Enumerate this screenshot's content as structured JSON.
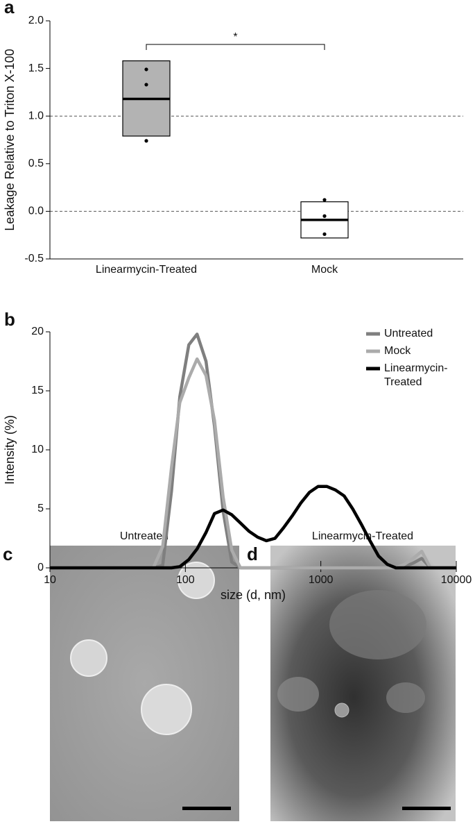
{
  "chart_data": [
    {
      "type": "box",
      "panel": "a",
      "ylabel": "Leakage Relative to Triton X-100",
      "categories": [
        "Linearmycin-Treated",
        "Mock"
      ],
      "boxes": [
        {
          "low": 0.79,
          "median": 1.18,
          "high": 1.58,
          "points": [
            1.49,
            1.33,
            0.74
          ],
          "color": "#b3b3b3"
        },
        {
          "low": -0.28,
          "median": -0.09,
          "high": 0.1,
          "points": [
            0.12,
            -0.05,
            -0.24
          ],
          "color": "#ffffff"
        }
      ],
      "ylim": [
        -0.5,
        2.0
      ],
      "yticks": [
        -0.5,
        {
          "value": 0,
          "label": "0.0"
        },
        0.5,
        {
          "value": 1,
          "label": "1.0"
        },
        1.5,
        {
          "value": 2,
          "label": "2.0"
        }
      ],
      "hlines": [
        0,
        1
      ],
      "significance": "*"
    },
    {
      "type": "line",
      "panel": "b",
      "xlabel": "size (d, nm)",
      "ylabel": "Intensity (%)",
      "xlog": true,
      "x": [
        10,
        58,
        68,
        79,
        91,
        106,
        122,
        142,
        164,
        190,
        220,
        255,
        295,
        342,
        396,
        459,
        531,
        615,
        712,
        825,
        955,
        1106,
        1281,
        1484,
        1718,
        1990,
        2305,
        2669,
        3091,
        3580,
        4145,
        4801,
        5560,
        6439,
        10000
      ],
      "series": [
        {
          "name": "Untreated",
          "color": "#7f7f7f",
          "values": [
            0,
            0,
            0.2,
            6.5,
            14.5,
            18.9,
            19.8,
            17.5,
            12.0,
            4.8,
            0.5,
            0,
            0,
            0,
            0,
            0,
            0,
            0,
            0,
            0,
            0,
            0,
            0,
            0,
            0,
            0,
            0,
            0,
            0,
            0,
            0.1,
            0.4,
            0.8,
            0,
            0
          ]
        },
        {
          "name": "Mock",
          "color": "#ababab",
          "values": [
            0,
            0,
            1.8,
            8.5,
            14.0,
            16.1,
            17.7,
            16.3,
            12.5,
            6.0,
            1.5,
            0,
            0,
            0,
            0,
            0,
            0,
            0,
            0,
            0,
            0,
            0,
            0,
            0,
            0,
            0,
            0,
            0,
            0,
            0,
            0.3,
            0.8,
            1.4,
            0,
            0
          ]
        },
        {
          "name": "Linearmycin-Treated",
          "color": "#000000",
          "values": [
            0,
            0,
            0,
            0,
            0.1,
            0.7,
            1.6,
            3.0,
            4.6,
            4.9,
            4.5,
            3.8,
            3.1,
            2.6,
            2.3,
            2.5,
            3.4,
            4.4,
            5.5,
            6.4,
            6.9,
            6.9,
            6.6,
            6.1,
            5.0,
            3.7,
            2.3,
            1.0,
            0.3,
            0,
            0,
            0,
            0,
            0,
            0
          ]
        }
      ],
      "xlim": [
        10,
        10000
      ],
      "xticks": [
        10,
        100,
        1000,
        10000
      ],
      "ylim": [
        0,
        20
      ],
      "yticks": [
        0,
        5,
        10,
        15,
        20
      ],
      "legend": "top-right"
    }
  ],
  "images": [
    {
      "panel": "c",
      "title": "Untreated"
    },
    {
      "panel": "d",
      "title": "Linearmycin-Treated"
    }
  ]
}
